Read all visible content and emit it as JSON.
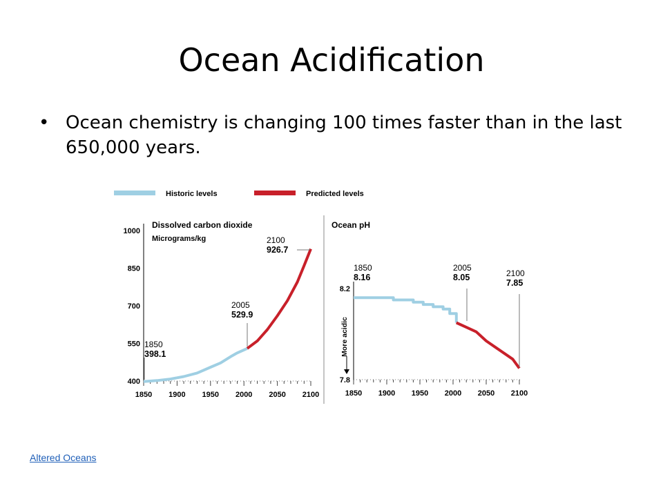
{
  "slide": {
    "title": "Ocean Acidification",
    "bullet": "Ocean chemistry is changing 100 times faster than in the last 650,000 years.",
    "link": "Altered Oceans"
  },
  "legend": {
    "historic": "Historic levels",
    "predicted": "Predicted levels",
    "historic_color": "#9fcfe3",
    "predicted_color": "#c8202a"
  },
  "chart_data": [
    {
      "type": "line",
      "title": "Dissolved carbon dioxide",
      "ylabel": "Micrograms/kg",
      "xlabel": "",
      "xlim": [
        1850,
        2100
      ],
      "ylim": [
        400,
        1000
      ],
      "x_ticks": [
        1850,
        1900,
        1950,
        2000,
        2050,
        2100
      ],
      "y_ticks": [
        400,
        550,
        700,
        850,
        1000
      ],
      "series": [
        {
          "name": "Historic levels",
          "x": [
            1850,
            1870,
            1890,
            1910,
            1930,
            1950,
            1965,
            1980,
            1990,
            2005
          ],
          "y": [
            398.1,
            402,
            408,
            418,
            432,
            455,
            472,
            497,
            512,
            529.9
          ]
        },
        {
          "name": "Predicted levels",
          "x": [
            2005,
            2020,
            2035,
            2050,
            2065,
            2080,
            2090,
            2100
          ],
          "y": [
            529.9,
            560,
            605,
            660,
            720,
            795,
            860,
            926.7
          ]
        }
      ],
      "annotations": [
        {
          "year": "1850",
          "value": "398.1",
          "x": 1850,
          "y": 398.1
        },
        {
          "year": "2005",
          "value": "529.9",
          "x": 2005,
          "y": 529.9
        },
        {
          "year": "2100",
          "value": "926.7",
          "x": 2100,
          "y": 926.7
        }
      ]
    },
    {
      "type": "line",
      "title": "Ocean pH",
      "ylabel": "More acidic",
      "xlabel": "",
      "xlim": [
        1850,
        2100
      ],
      "ylim": [
        7.8,
        8.2
      ],
      "x_ticks": [
        1850,
        1900,
        1950,
        2000,
        2050,
        2100
      ],
      "y_ticks": [
        7.8,
        8.2
      ],
      "series": [
        {
          "name": "Historic levels",
          "x": [
            1850,
            1870,
            1890,
            1910,
            1925,
            1940,
            1955,
            1970,
            1985,
            1995,
            2005
          ],
          "y": [
            8.16,
            8.16,
            8.16,
            8.15,
            8.15,
            8.14,
            8.13,
            8.12,
            8.11,
            8.09,
            8.05
          ],
          "stepped": true
        },
        {
          "name": "Predicted levels",
          "x": [
            2005,
            2020,
            2035,
            2050,
            2065,
            2080,
            2090,
            2100
          ],
          "y": [
            8.05,
            8.03,
            8.01,
            7.97,
            7.94,
            7.91,
            7.89,
            7.85
          ]
        }
      ],
      "annotations": [
        {
          "year": "1850",
          "value": "8.16",
          "x": 1850,
          "y": 8.16
        },
        {
          "year": "2005",
          "value": "8.05",
          "x": 2005,
          "y": 8.05
        },
        {
          "year": "2100",
          "value": "7.85",
          "x": 2100,
          "y": 7.85
        }
      ]
    }
  ]
}
